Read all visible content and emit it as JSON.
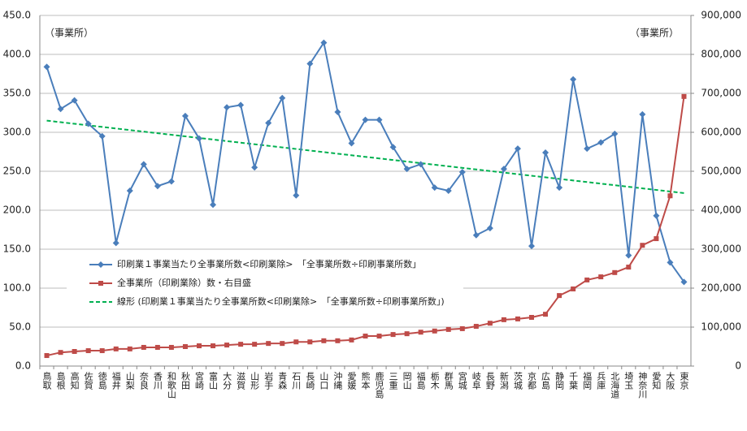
{
  "chart_data": {
    "type": "line",
    "annotations": [
      "（事業所）",
      "（事業所）"
    ],
    "categories": [
      "鳥取",
      "島根",
      "高知",
      "佐賀",
      "徳島",
      "福井",
      "山梨",
      "奈良",
      "香川",
      "和歌山",
      "秋田",
      "宮崎",
      "富山",
      "大分",
      "滋賀",
      "山形",
      "岩手",
      "青森",
      "石川",
      "長崎",
      "山口",
      "沖縄",
      "愛媛",
      "熊本",
      "鹿児島",
      "三重",
      "岡山",
      "福島",
      "栃木",
      "群馬",
      "宮城",
      "岐阜",
      "長野",
      "新潟",
      "茨城",
      "京都",
      "広島",
      "静岡",
      "千葉",
      "福岡",
      "兵庫",
      "北海道",
      "埼玉",
      "神奈川",
      "愛知",
      "大阪",
      "東京"
    ],
    "series": [
      {
        "name": "印刷業１事業当たり全事業所数<印刷業除>　「全事業所数÷印刷事業所数」",
        "color": "#4a7ebb",
        "marker": "diamond",
        "values": [
          384,
          330,
          341,
          311,
          295,
          158,
          225,
          259,
          231,
          237,
          321,
          292,
          207,
          332,
          335,
          255,
          312,
          344,
          219,
          388,
          415,
          326,
          286,
          316,
          316,
          281,
          253,
          259,
          229,
          225,
          249,
          168,
          177,
          253,
          279,
          154,
          274,
          229,
          368,
          279,
          287,
          298,
          142,
          323,
          193,
          133,
          108
        ]
      },
      {
        "name": "全事業所（印刷業除）数・右目盛",
        "color": "#be4b48",
        "marker": "square",
        "axis": "y2",
        "values": [
          27000,
          35000,
          37500,
          39500,
          39500,
          44000,
          44000,
          48000,
          48000,
          48000,
          50000,
          52000,
          52000,
          54000,
          56000,
          56000,
          58000,
          58000,
          62000,
          62000,
          65000,
          65000,
          67000,
          77000,
          77000,
          81000,
          83000,
          87000,
          90000,
          94000,
          96000,
          102000,
          110000,
          119000,
          121000,
          125000,
          133000,
          181000,
          198000,
          221000,
          229000,
          240000,
          254000,
          310000,
          327000,
          437000,
          692000
        ]
      }
    ],
    "trendline": {
      "name": "線形 (印刷業１事業当たり全事業所数<印刷業除>　「全事業所数÷印刷事業所数」)",
      "color": "#00b050",
      "dashed": true,
      "start": 315,
      "end": 222
    },
    "ylim": [
      0,
      450
    ],
    "yticks": [
      {
        "value": 0,
        "label": "0.0"
      },
      {
        "value": 50,
        "label": "50.0"
      },
      {
        "value": 100,
        "label": "100.0"
      },
      {
        "value": 150,
        "label": "150.0"
      },
      {
        "value": 200,
        "label": "200.0"
      },
      {
        "value": 250,
        "label": "250.0"
      },
      {
        "value": 300,
        "label": "300.0"
      },
      {
        "value": 350,
        "label": "350.0"
      },
      {
        "value": 400,
        "label": "400.0"
      },
      {
        "value": 450,
        "label": "450.0"
      }
    ],
    "y2lim": [
      0,
      900000
    ],
    "y2ticks": [
      0,
      {
        "value": 100000,
        "label": "100,000"
      },
      {
        "value": 200000,
        "label": "200,000"
      },
      {
        "value": 300000,
        "label": "300,000"
      },
      {
        "value": 400000,
        "label": "400,000"
      },
      {
        "value": 500000,
        "label": "500,000"
      },
      {
        "value": 600000,
        "label": "600,000"
      },
      {
        "value": 700000,
        "label": "700,000"
      },
      {
        "value": 800000,
        "label": "800,000"
      },
      {
        "value": 900000,
        "label": "900,000"
      }
    ],
    "grid": true
  }
}
